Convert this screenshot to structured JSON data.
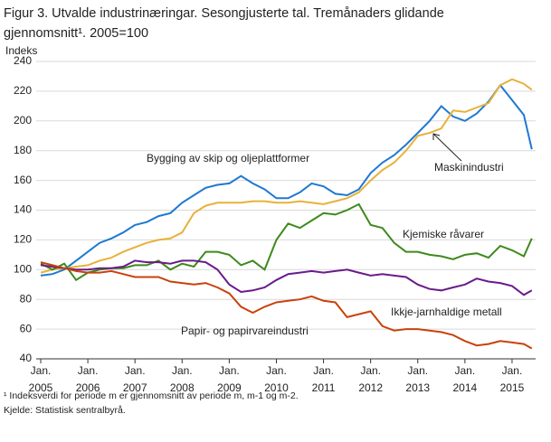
{
  "chart_data": {
    "type": "line",
    "title": [
      "Figur 3. Utvalde industrinæringar. Sesongjusterte tal. Tremånaders glidande",
      "gjennomsnitt¹. 2005=100"
    ],
    "y_label": "Indeks",
    "notes": [
      "¹ Indeksverdi for periode m er gjennomsnitt av periode m, m-1 og m-2.",
      "Kjelde: Statistisk sentralbyrå."
    ],
    "x": [
      2005,
      2005.25,
      2005.5,
      2005.75,
      2006,
      2006.25,
      2006.5,
      2006.75,
      2007,
      2007.25,
      2007.5,
      2007.75,
      2008,
      2008.25,
      2008.5,
      2008.75,
      2009,
      2009.25,
      2009.5,
      2009.75,
      2010,
      2010.25,
      2010.5,
      2010.75,
      2011,
      2011.25,
      2011.5,
      2011.75,
      2012,
      2012.25,
      2012.5,
      2012.75,
      2013,
      2013.25,
      2013.5,
      2013.75,
      2014,
      2014.25,
      2014.5,
      2014.75,
      2015,
      2015.25,
      2015.42
    ],
    "xlim": [
      2005,
      2015.5
    ],
    "xticks": [
      {
        "value": 2005,
        "label": [
          "Jan.",
          "2005"
        ]
      },
      {
        "value": 2006,
        "label": [
          "Jan.",
          "2006"
        ]
      },
      {
        "value": 2007,
        "label": [
          "Jan.",
          "2007"
        ]
      },
      {
        "value": 2008,
        "label": [
          "Jan.",
          "2008"
        ]
      },
      {
        "value": 2009,
        "label": [
          "Jan.",
          "2009"
        ]
      },
      {
        "value": 2010,
        "label": [
          "Jan.",
          "2010"
        ]
      },
      {
        "value": 2011,
        "label": [
          "Jan.",
          "2011"
        ]
      },
      {
        "value": 2012,
        "label": [
          "Jan.",
          "2012"
        ]
      },
      {
        "value": 2013,
        "label": [
          "Jan.",
          "2013"
        ]
      },
      {
        "value": 2014,
        "label": [
          "Jan.",
          "2014"
        ]
      },
      {
        "value": 2015,
        "label": [
          "Jan.",
          "2015"
        ]
      }
    ],
    "ylim": [
      40,
      240
    ],
    "yticks": [
      40,
      60,
      80,
      100,
      120,
      140,
      160,
      180,
      200,
      220,
      240
    ],
    "grid": true,
    "series": [
      {
        "name": "Bygging av skip og oljeplattformer",
        "color": "#1f78d1",
        "values": [
          96,
          97,
          100,
          106,
          112,
          118,
          121,
          125,
          130,
          132,
          136,
          138,
          145,
          150,
          155,
          157,
          158,
          163,
          158,
          154,
          148,
          148,
          152,
          158,
          156,
          151,
          150,
          154,
          165,
          172,
          177,
          184,
          192,
          200,
          210,
          203,
          200,
          205,
          213,
          224,
          214,
          204,
          181
        ]
      },
      {
        "name": "Maskinindustri",
        "color": "#e8b13a",
        "values": [
          98,
          100,
          101,
          102,
          103,
          106,
          108,
          112,
          115,
          118,
          120,
          121,
          125,
          138,
          143,
          145,
          145,
          145,
          146,
          146,
          145,
          145,
          146,
          145,
          144,
          146,
          148,
          152,
          160,
          167,
          172,
          180,
          190,
          192,
          195,
          207,
          206,
          209,
          212,
          224,
          228,
          225,
          221
        ]
      },
      {
        "name": "Kjemiske  råvarer",
        "color": "#3d8a1c",
        "values": [
          104,
          100,
          104,
          93,
          98,
          100,
          101,
          101,
          103,
          103,
          106,
          100,
          104,
          102,
          112,
          112,
          110,
          103,
          106,
          100,
          120,
          131,
          128,
          133,
          138,
          137,
          140,
          144,
          130,
          128,
          118,
          112,
          112,
          110,
          109,
          107,
          110,
          111,
          108,
          116,
          113,
          109,
          121
        ]
      },
      {
        "name": "Ikkje-jarnhaldige  metall",
        "color": "#6a1b8a",
        "values": [
          103,
          102,
          101,
          100,
          100,
          101,
          101,
          102,
          106,
          105,
          105,
          104,
          106,
          106,
          105,
          100,
          90,
          85,
          86,
          88,
          93,
          97,
          98,
          99,
          98,
          99,
          100,
          98,
          96,
          97,
          96,
          95,
          90,
          87,
          86,
          88,
          90,
          94,
          92,
          91,
          89,
          83,
          86
        ]
      },
      {
        "name": "Papir- og papirvareindustri",
        "color": "#c8420c",
        "values": [
          105,
          103,
          101,
          99,
          98,
          98,
          99,
          97,
          95,
          95,
          95,
          92,
          91,
          90,
          91,
          88,
          84,
          75,
          71,
          75,
          78,
          79,
          80,
          82,
          79,
          78,
          68,
          70,
          72,
          62,
          59,
          60,
          60,
          59,
          58,
          56,
          52,
          49,
          50,
          52,
          51,
          50,
          47
        ]
      }
    ]
  }
}
